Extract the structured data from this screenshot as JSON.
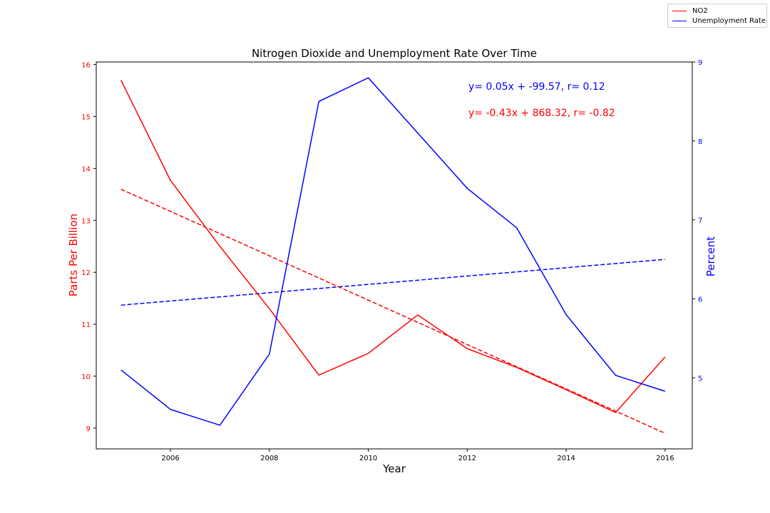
{
  "chart_data": {
    "type": "line",
    "title": "Nitrogen Dioxide and Unemployment Rate Over Time",
    "xlabel": "Year",
    "ylabel_left": "Parts Per Billion",
    "ylabel_right": "Percent",
    "xlim": [
      2004.5,
      2016.55
    ],
    "ylim_left": [
      8.6,
      16.05
    ],
    "ylim_right": [
      4.1,
      9.0
    ],
    "x_ticks": [
      2006,
      2008,
      2010,
      2012,
      2014,
      2016
    ],
    "y_ticks_left": [
      9,
      10,
      11,
      12,
      13,
      14,
      15,
      16
    ],
    "y_ticks_right": [
      5,
      6,
      7,
      8,
      9
    ],
    "grid": false,
    "legend_position": "top-right (figure)",
    "colors": {
      "no2": "#ff0000",
      "unemployment": "#0000ff"
    },
    "x": [
      2005,
      2006,
      2007,
      2008,
      2009,
      2010,
      2011,
      2012,
      2013,
      2014,
      2015,
      2016
    ],
    "series": [
      {
        "name": "NO2",
        "axis": "left",
        "color": "#ff0000",
        "values": [
          15.7,
          13.77,
          12.5,
          11.3,
          10.02,
          10.44,
          11.18,
          10.53,
          10.17,
          9.74,
          9.3,
          10.37
        ]
      },
      {
        "name": "Unemployment Rate",
        "axis": "right",
        "color": "#0000ff",
        "values": [
          5.1,
          4.6,
          4.4,
          5.3,
          8.5,
          8.8,
          8.1,
          7.4,
          6.9,
          5.8,
          5.03,
          4.83
        ]
      }
    ],
    "trendlines": [
      {
        "series": "Unemployment Rate",
        "axis": "right",
        "color": "#0000ff",
        "style": "dashed",
        "slope": 0.05,
        "intercept": -99.57,
        "r": 0.12,
        "x_range": [
          2005,
          2016
        ],
        "y_range": [
          5.92,
          6.5
        ]
      },
      {
        "series": "NO2",
        "axis": "left",
        "color": "#ff0000",
        "style": "dashed",
        "slope": -0.43,
        "intercept": 868.32,
        "r": -0.82,
        "x_range": [
          2005,
          2016
        ],
        "y_range": [
          13.6,
          8.9
        ]
      }
    ],
    "annotations": [
      {
        "text": "y= 0.05x + -99.57, r= 0.12",
        "color": "#0000ff"
      },
      {
        "text": "y= -0.43x + 868.32, r= -0.82",
        "color": "#ff0000"
      }
    ]
  },
  "legend": {
    "items": [
      {
        "label": "NO2",
        "color": "#ff0000"
      },
      {
        "label": "Unemployment Rate",
        "color": "#0000ff"
      }
    ]
  }
}
